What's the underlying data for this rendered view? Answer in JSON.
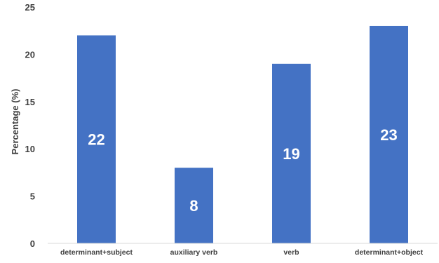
{
  "chart_data": {
    "type": "bar",
    "categories": [
      "determinant+subject",
      "auxiliary verb",
      "verb",
      "determinant+object"
    ],
    "values": [
      22,
      8,
      19,
      23
    ],
    "data_labels": [
      "22",
      "8",
      "19",
      "23"
    ],
    "title": "",
    "xlabel": "",
    "ylabel": "Percentage (%)",
    "ylim": [
      0,
      25
    ],
    "yticks": [
      "0",
      "5",
      "10",
      "15",
      "20",
      "25"
    ],
    "grid": false,
    "legend": "none",
    "bar_color": "#4472C4"
  }
}
